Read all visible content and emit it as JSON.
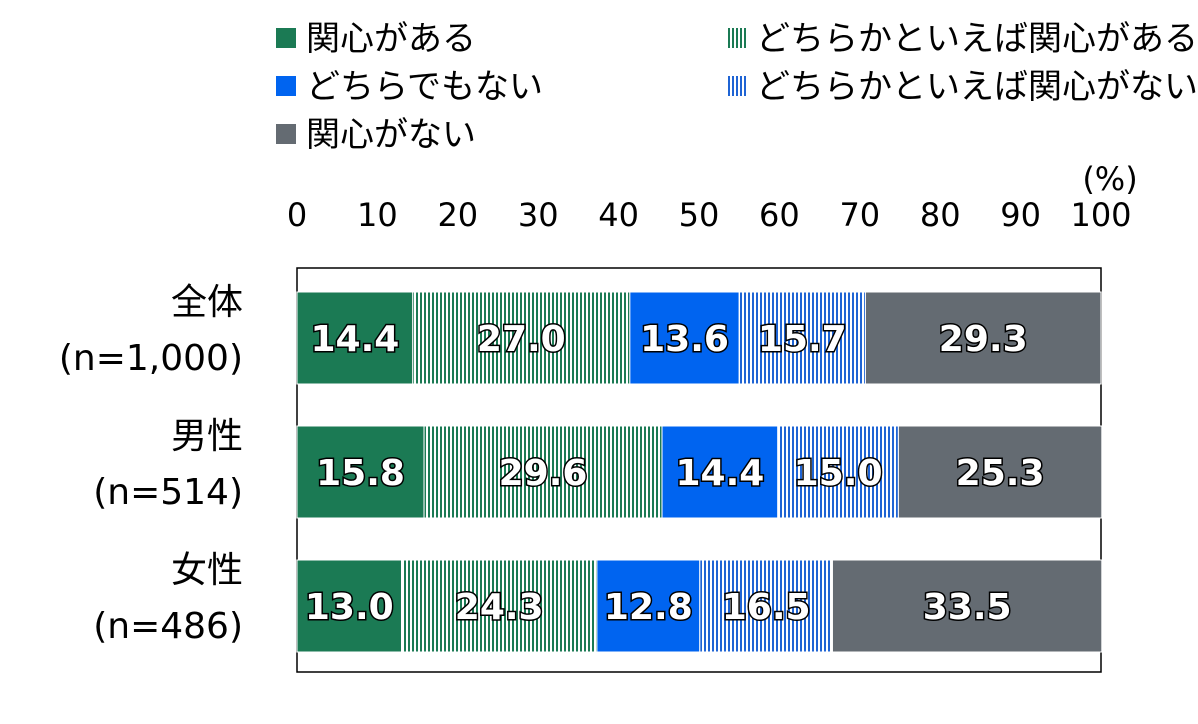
{
  "chart_data": {
    "type": "bar",
    "orientation": "horizontal",
    "stacked": true,
    "unit": "(%)",
    "xlim": [
      0,
      100
    ],
    "x_ticks": [
      "0",
      "10",
      "20",
      "30",
      "40",
      "50",
      "60",
      "70",
      "80",
      "90",
      "100"
    ],
    "categories": [
      [
        "全体",
        "(n=1,000)"
      ],
      [
        "男性",
        "(n=514)"
      ],
      [
        "女性",
        "(n=486)"
      ]
    ],
    "series": [
      {
        "name": "関心がある",
        "values": [
          14.4,
          15.8,
          13.0
        ],
        "labels": [
          "14.4",
          "15.8",
          "13.0"
        ],
        "color": "#1b7a54",
        "pattern": "solid"
      },
      {
        "name": "どちらかといえば関心がある",
        "values": [
          27.0,
          29.6,
          24.3
        ],
        "labels": [
          "27.0",
          "29.6",
          "24.3"
        ],
        "color": "#1b7a54",
        "pattern": "vertical-stripes"
      },
      {
        "name": "どちらでもない",
        "values": [
          13.6,
          14.4,
          12.8
        ],
        "labels": [
          "13.6",
          "14.4",
          "12.8"
        ],
        "color": "#0064f0",
        "pattern": "solid"
      },
      {
        "name": "どちらかといえば関心がない",
        "values": [
          15.7,
          15.0,
          16.5
        ],
        "labels": [
          "15.7",
          "15.0",
          "16.5"
        ],
        "color": "#1f64d4",
        "pattern": "vertical-stripes"
      },
      {
        "name": "関心がない",
        "values": [
          29.3,
          25.3,
          33.5
        ],
        "labels": [
          "29.3",
          "25.3",
          "33.5"
        ],
        "color": "#646b72",
        "pattern": "solid"
      }
    ],
    "legend_position": "top",
    "grid": false
  }
}
